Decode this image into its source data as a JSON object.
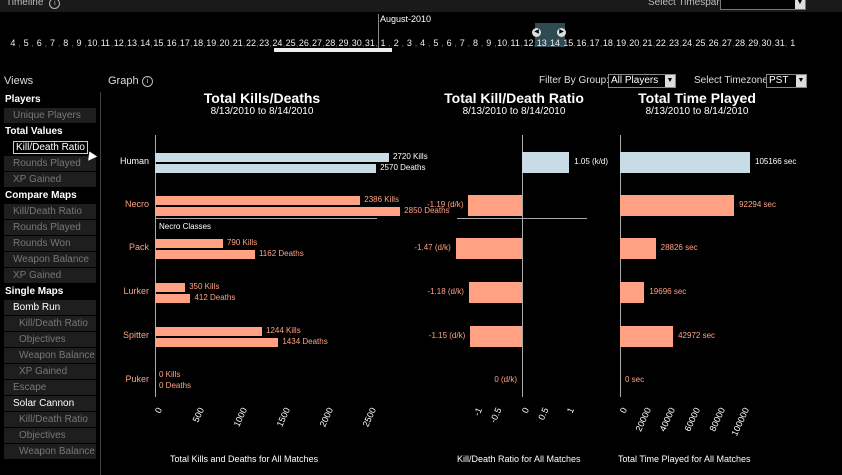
{
  "timeline": {
    "label": "Timeline",
    "info_icon": "i",
    "timespan_label": "Select Timespan:",
    "month": "August-2010",
    "days_july": [
      "4",
      "5",
      "6",
      "7",
      "8",
      "9",
      "10",
      "11",
      "12",
      "13",
      "14",
      "15",
      "16",
      "17",
      "18",
      "19",
      "20",
      "21",
      "22",
      "23",
      "24",
      "25",
      "26",
      "27",
      "28",
      "29",
      "30",
      "31"
    ],
    "days_aug": [
      "1",
      "2",
      "3",
      "4",
      "5",
      "6",
      "7",
      "8",
      "9",
      "10",
      "11",
      "12",
      "13",
      "14",
      "15",
      "16",
      "17",
      "18",
      "19",
      "20",
      "21",
      "22",
      "23",
      "24",
      "25",
      "26",
      "27",
      "28",
      "29",
      "30",
      "31"
    ],
    "days_sep": [
      "1"
    ]
  },
  "sidebar": {
    "views_label": "Views",
    "items": [
      {
        "label": "Players",
        "type": "header"
      },
      {
        "label": "Unique Players",
        "type": "item"
      },
      {
        "label": "Total Values",
        "type": "header"
      },
      {
        "label": "Kill/Death Ratio",
        "type": "sel"
      },
      {
        "label": "Rounds Played",
        "type": "item"
      },
      {
        "label": "XP Gained",
        "type": "item"
      },
      {
        "label": "Compare Maps",
        "type": "header"
      },
      {
        "label": "Kill/Death Ratio",
        "type": "item"
      },
      {
        "label": "Rounds Played",
        "type": "item"
      },
      {
        "label": "Rounds Won",
        "type": "item"
      },
      {
        "label": "Weapon Balance",
        "type": "item"
      },
      {
        "label": "XP Gained",
        "type": "item"
      },
      {
        "label": "Single Maps",
        "type": "header"
      },
      {
        "label": "Bomb Run",
        "type": "sub"
      },
      {
        "label": "Kill/Death Ratio",
        "type": "l3"
      },
      {
        "label": "Objectives",
        "type": "l3"
      },
      {
        "label": "Weapon Balance",
        "type": "l3"
      },
      {
        "label": "XP Gained",
        "type": "l3"
      },
      {
        "label": "Escape",
        "type": "item"
      },
      {
        "label": "Solar Cannon",
        "type": "sub"
      },
      {
        "label": "Kill/Death Ratio",
        "type": "l3"
      },
      {
        "label": "Objectives",
        "type": "l3"
      },
      {
        "label": "Weapon Balance",
        "type": "l3"
      }
    ]
  },
  "header": {
    "graph_label": "Graph",
    "filter_label": "Filter By Group:",
    "filter_value": "All Players",
    "tz_label": "Select Timezone:",
    "tz_value": "PST"
  },
  "colors": {
    "human": "#c8dce6",
    "necro": "#ffa182"
  },
  "chart_data": [
    {
      "type": "bar",
      "title": "Total Kills/Deaths",
      "subtitle": "8/13/2010 to 8/14/2010",
      "xlabel": "Total Kills and Deaths for All Matches",
      "ticks": [
        0,
        500,
        1000,
        1500,
        2000,
        2500
      ],
      "xlim": [
        0,
        2950
      ],
      "necro_classes_label": "Necro Classes",
      "categories": [
        "Human",
        "Necro",
        "Pack",
        "Lurker",
        "Spitter",
        "Puker"
      ],
      "series": [
        {
          "name": "Kills",
          "values": [
            2720,
            2386,
            790,
            350,
            1244,
            0
          ]
        },
        {
          "name": "Deaths",
          "values": [
            2570,
            2850,
            1162,
            412,
            1434,
            0
          ]
        }
      ],
      "labels": [
        [
          "2720 Kills",
          "2570 Deaths"
        ],
        [
          "2386 Kills",
          "2850 Deaths"
        ],
        [
          "790 Kills",
          "1162 Deaths"
        ],
        [
          "350 Kills",
          "412 Deaths"
        ],
        [
          "1244 Kills",
          "1434 Deaths"
        ],
        [
          "0 Kills",
          "0 Deaths"
        ]
      ]
    },
    {
      "type": "bar",
      "title": "Total Kill/Death Ratio",
      "subtitle": "8/13/2010 to 8/14/2010",
      "xlabel": "Kill/Death Ratio for All Matches",
      "ticks": [
        -1,
        -0.5,
        0,
        0.5,
        1
      ],
      "xlim": [
        -1.5,
        1.2
      ],
      "categories": [
        "Human",
        "Necro",
        "Pack",
        "Lurker",
        "Spitter",
        "Puker"
      ],
      "values": [
        1.05,
        -1.19,
        -1.47,
        -1.18,
        -1.15,
        0
      ],
      "labels": [
        "1.05 (k/d)",
        "-1.19 (d/k)",
        "-1.47 (d/k)",
        "-1.18 (d/k)",
        "-1.15 (d/k)",
        "0 (d/k)"
      ]
    },
    {
      "type": "bar",
      "title": "Total Time Played",
      "subtitle": "8/13/2010 to 8/14/2010",
      "xlabel": "Total Time Played for All Matches",
      "ticks": [
        0,
        20000,
        40000,
        60000,
        80000,
        100000
      ],
      "xlim": [
        0,
        110000
      ],
      "categories": [
        "Human",
        "Necro",
        "Pack",
        "Lurker",
        "Spitter",
        "Puker"
      ],
      "values": [
        105166,
        92294,
        28826,
        19696,
        42972,
        0
      ],
      "labels": [
        "105166 sec",
        "92294 sec",
        "28826 sec",
        "19696 sec",
        "42972 sec",
        "0 sec"
      ]
    }
  ]
}
